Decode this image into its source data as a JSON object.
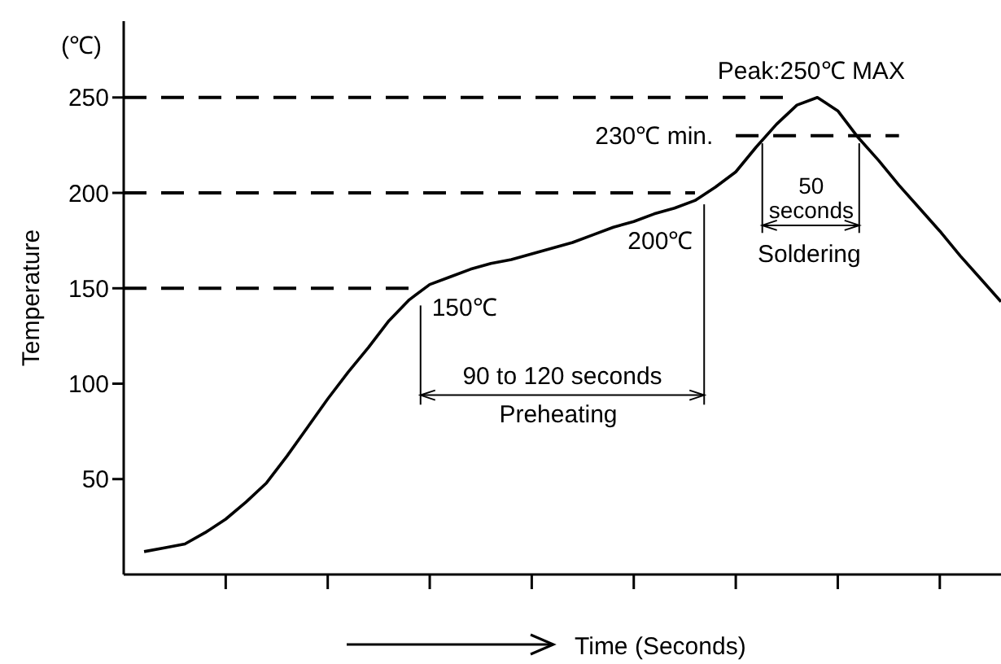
{
  "chart_data": {
    "type": "line",
    "xlabel": "Time (Seconds)",
    "ylabel": "Temperature",
    "categories": [
      null,
      null,
      null,
      null,
      null,
      null,
      null,
      null,
      null,
      null,
      null,
      null,
      null,
      null,
      null,
      null,
      null,
      null,
      null,
      null,
      null,
      null,
      null,
      null,
      null,
      null,
      null,
      null,
      null,
      null,
      null,
      null,
      null,
      null,
      null,
      null,
      null,
      null,
      null,
      null,
      null,
      null,
      null,
      null
    ],
    "ylim": [
      0,
      290
    ],
    "yticks": [
      50,
      100,
      150,
      200,
      250
    ],
    "tick_labels": "y",
    "grid": false,
    "marker": "none",
    "series": [
      {
        "color": "#000000",
        "line_style": "solid",
        "values": [
          null,
          12,
          14,
          16,
          22,
          29,
          38,
          48,
          62,
          77,
          92,
          106,
          119,
          133,
          144,
          152,
          156,
          160,
          163,
          165,
          168,
          171,
          174,
          178,
          182,
          185,
          189,
          192,
          196,
          203,
          211,
          224,
          236,
          246,
          250,
          243,
          229,
          217,
          204,
          192,
          180,
          167,
          155,
          143
        ]
      },
      {
        "color": "#000000",
        "line_style": "dashed",
        "values": [
          250,
          250,
          250,
          250,
          250,
          250,
          250,
          250,
          250,
          250,
          250,
          250,
          250,
          250,
          250,
          250,
          250,
          250,
          250,
          250,
          250,
          250,
          250,
          250,
          250,
          250,
          250,
          250,
          250,
          250,
          250,
          250,
          250,
          250,
          null,
          null,
          null,
          null,
          null,
          null,
          null,
          null,
          null,
          null
        ]
      },
      {
        "color": "#000000",
        "line_style": "dashed",
        "values": [
          200,
          200,
          200,
          200,
          200,
          200,
          200,
          200,
          200,
          200,
          200,
          200,
          200,
          200,
          200,
          200,
          200,
          200,
          200,
          200,
          200,
          200,
          200,
          200,
          200,
          200,
          200,
          200,
          200,
          null,
          null,
          null,
          null,
          null,
          null,
          null,
          null,
          null,
          null,
          null,
          null,
          null,
          null,
          null
        ]
      },
      {
        "color": "#000000",
        "line_style": "dashed",
        "values": [
          150,
          150,
          150,
          150,
          150,
          150,
          150,
          150,
          150,
          150,
          150,
          150,
          150,
          150,
          150,
          null,
          null,
          null,
          null,
          null,
          null,
          null,
          null,
          null,
          null,
          null,
          null,
          null,
          null,
          null,
          null,
          null,
          null,
          null,
          null,
          null,
          null,
          null,
          null,
          null,
          null,
          null,
          null,
          null
        ]
      },
      {
        "color": "#000000",
        "line_style": "dashed",
        "values": [
          null,
          null,
          null,
          null,
          null,
          null,
          null,
          null,
          null,
          null,
          null,
          null,
          null,
          null,
          null,
          null,
          null,
          null,
          null,
          null,
          null,
          null,
          null,
          null,
          null,
          null,
          null,
          null,
          null,
          null,
          230,
          230,
          230,
          230,
          230,
          230,
          230,
          230,
          230,
          null,
          null,
          null,
          null,
          null
        ]
      }
    ],
    "annotations": [
      "(℃)",
      "Peak:250℃ MAX",
      "230℃ min.",
      "200℃",
      "150℃",
      "90 to 120 seconds",
      "Preheating",
      "50 seconds",
      "Soldering"
    ]
  }
}
